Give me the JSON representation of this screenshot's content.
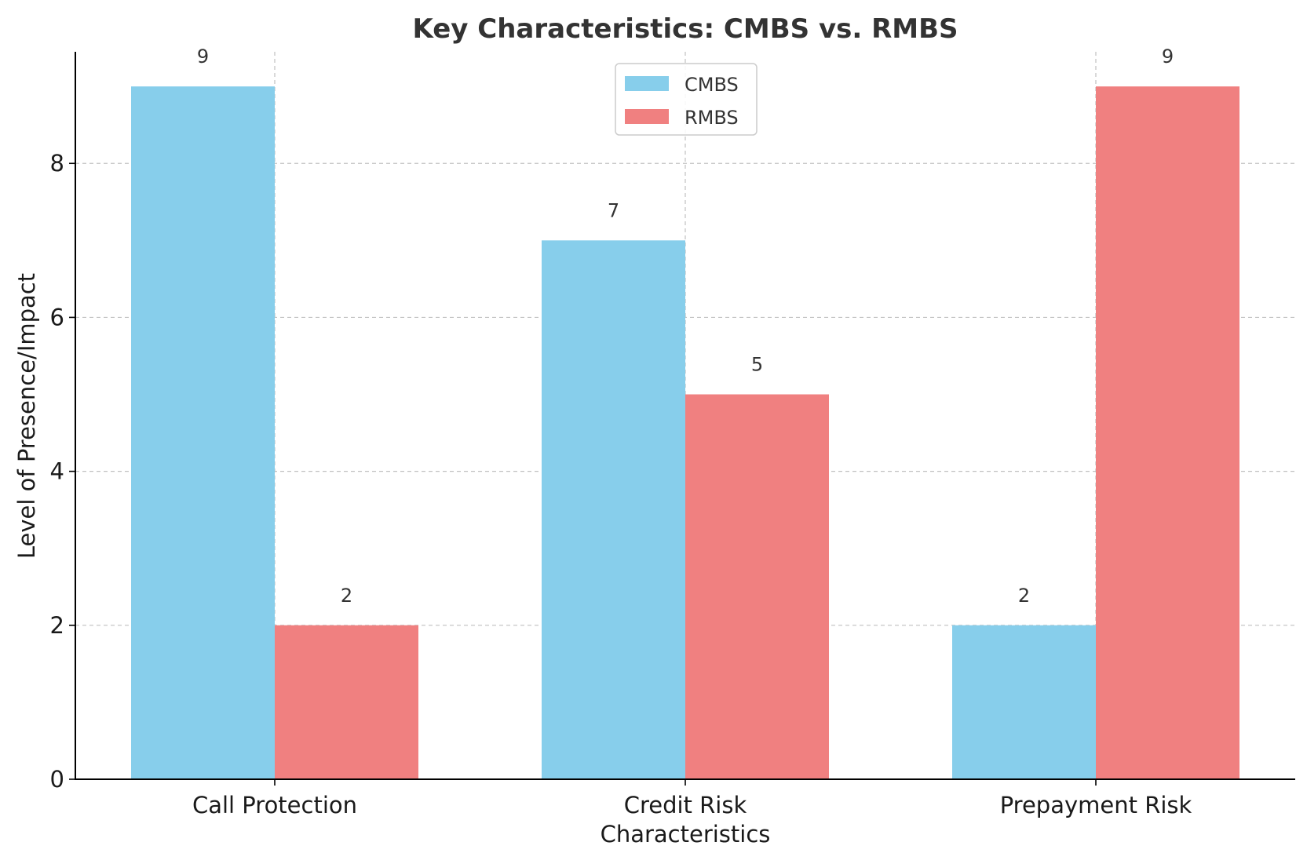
{
  "chart_data": {
    "type": "bar",
    "title": "Key Characteristics: CMBS vs. RMBS",
    "xlabel": "Characteristics",
    "ylabel": "Level of Presence/Impact",
    "categories": [
      "Call Protection",
      "Credit Risk",
      "Prepayment Risk"
    ],
    "series": [
      {
        "name": "CMBS",
        "color": "#87CEEB",
        "values": [
          9,
          7,
          2
        ]
      },
      {
        "name": "RMBS",
        "color": "#F08080",
        "values": [
          2,
          5,
          9
        ]
      }
    ],
    "ylim": [
      0,
      9.45
    ],
    "yticks": [
      0,
      2,
      4,
      6,
      8
    ],
    "grid": true,
    "legend": "top-center",
    "data_labels": true
  }
}
